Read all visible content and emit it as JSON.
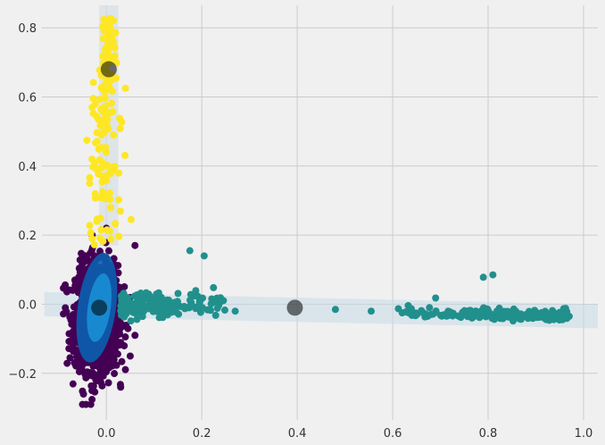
{
  "chart_data": {
    "type": "scatter",
    "title": "",
    "xlabel": "",
    "ylabel": "",
    "xlim": [
      -0.135,
      1.03
    ],
    "ylim": [
      -0.335,
      0.865
    ],
    "x_ticks": [
      0.0,
      0.2,
      0.4,
      0.6,
      0.8,
      1.0
    ],
    "x_tick_labels": [
      "0.0",
      "0.2",
      "0.4",
      "0.6",
      "0.8",
      "1.0"
    ],
    "y_ticks": [
      -0.2,
      0.0,
      0.2,
      0.4,
      0.6,
      0.8
    ],
    "y_tick_labels": [
      "−0.2",
      "0.0",
      "0.2",
      "0.4",
      "0.6",
      "0.8"
    ],
    "grid": true,
    "style": "fivethirtyeight",
    "series": [
      {
        "color": "#440154",
        "approx_points": 1500,
        "distribution": "dense cluster centred near (-0.02, -0.03), x roughly -0.09 to 0.07, y roughly -0.29 to 0.22",
        "points": [
          [
            -0.02,
            -0.03
          ],
          [
            -0.05,
            -0.29
          ],
          [
            -0.03,
            -0.25
          ],
          [
            0.03,
            -0.24
          ],
          [
            0.06,
            0.17
          ],
          [
            0.0,
            0.22
          ],
          [
            -0.07,
            -0.1
          ],
          [
            0.05,
            -0.15
          ],
          [
            -0.06,
            0.05
          ],
          [
            0.06,
            -0.09
          ]
        ]
      },
      {
        "color": "#21908d",
        "approx_points": 400,
        "distribution": "elongated band from (0.03, 0.0) to (0.97, -0.035), denser near x=0.05-0.1 and x=0.7-0.95",
        "points": [
          [
            0.04,
            0.0
          ],
          [
            0.08,
            -0.01
          ],
          [
            0.12,
            0.01
          ],
          [
            0.175,
            0.155
          ],
          [
            0.205,
            0.14
          ],
          [
            0.27,
            -0.02
          ],
          [
            0.48,
            -0.015
          ],
          [
            0.555,
            -0.02
          ],
          [
            0.62,
            -0.025
          ],
          [
            0.69,
            0.018
          ],
          [
            0.79,
            0.078
          ],
          [
            0.81,
            0.085
          ],
          [
            0.85,
            -0.03
          ],
          [
            0.97,
            -0.035
          ]
        ]
      },
      {
        "color": "#fde725",
        "approx_points": 150,
        "distribution": "narrow vertical streak along x near 0.0-0.02, y roughly 0.17 to 0.83",
        "points": [
          [
            0.01,
            0.82
          ],
          [
            0.005,
            0.75
          ],
          [
            0.0,
            0.65
          ],
          [
            0.04,
            0.625
          ],
          [
            -0.03,
            0.57
          ],
          [
            -0.01,
            0.49
          ],
          [
            -0.03,
            0.42
          ],
          [
            -0.035,
            0.35
          ],
          [
            -0.005,
            0.31
          ],
          [
            -0.02,
            0.24
          ],
          [
            -0.03,
            0.19
          ]
        ]
      }
    ],
    "centers": [
      [
        0.005,
        0.68
      ],
      [
        0.395,
        -0.01
      ],
      [
        -0.015,
        -0.01
      ]
    ],
    "ellipses": [
      {
        "color": "#0b5fb0",
        "cx": -0.02,
        "cy": -0.01,
        "rx": 0.04,
        "ry": 0.16,
        "rotation_deg": 8
      },
      {
        "color": "#1a8fd6",
        "cx": -0.015,
        "cy": -0.01,
        "rx": 0.024,
        "ry": 0.1,
        "rotation_deg": 8
      }
    ],
    "shaded_bands": [
      {
        "color": "#c7dde8",
        "x_range": [
          -0.13,
          1.03
        ],
        "y_center_range": [
          0.0,
          -0.035
        ],
        "half_width": 0.035
      },
      {
        "color": "#d5dee4",
        "x_center": 0.005,
        "x_half_width": 0.02,
        "y_range": [
          0.17,
          0.865
        ]
      }
    ]
  }
}
